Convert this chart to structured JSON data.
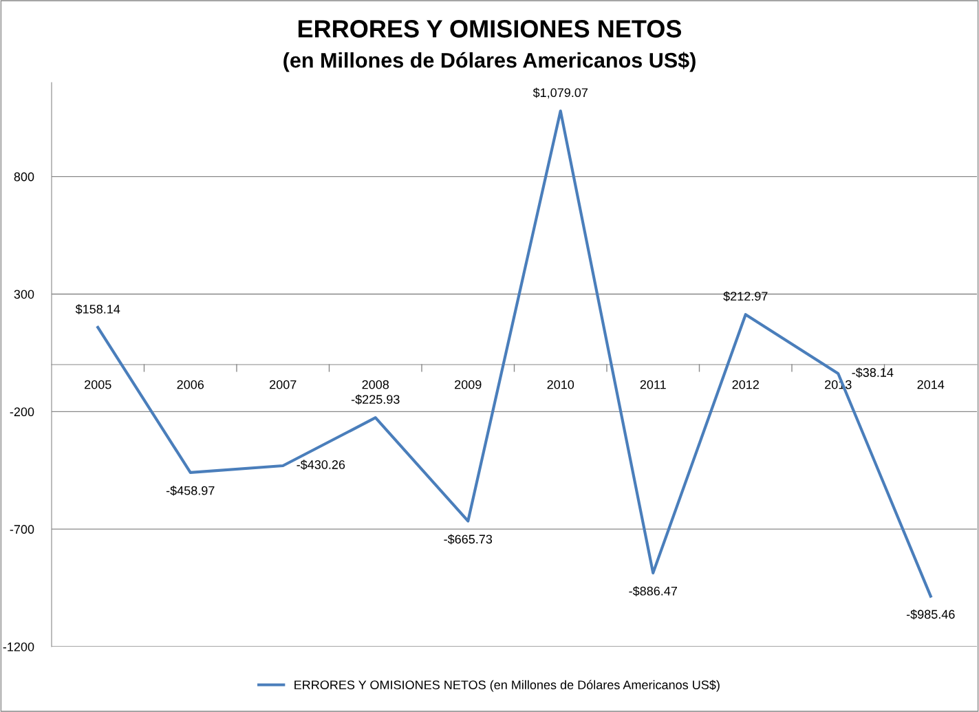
{
  "chart_data": {
    "type": "line",
    "title": "ERRORES Y OMISIONES NETOS",
    "subtitle": "(en Millones de Dólares Americanos US$)",
    "categories": [
      "2005",
      "2006",
      "2007",
      "2008",
      "2009",
      "2010",
      "2011",
      "2012",
      "2013",
      "2014"
    ],
    "series": [
      {
        "name": "ERRORES Y OMISIONES NETOS (en Millones de Dólares Americanos US$)",
        "color": "#4a7ebb",
        "values": [
          158.14,
          -458.97,
          -430.26,
          -225.93,
          -665.73,
          1079.07,
          -886.47,
          212.97,
          -38.14,
          -985.46
        ],
        "value_labels": [
          "$158.14",
          "-$458.97",
          "-$430.26",
          "-$225.93",
          "-$665.73",
          "$1,079.07",
          "-$886.47",
          "$212.97",
          "-$38.14",
          "-$985.46"
        ]
      }
    ],
    "ylim": [
      -1200,
      1200
    ],
    "yticks": [
      -1200,
      -700,
      -200,
      300,
      800
    ],
    "grid": "y",
    "legend": "bottom",
    "marker": "none",
    "line_style": "solid"
  }
}
